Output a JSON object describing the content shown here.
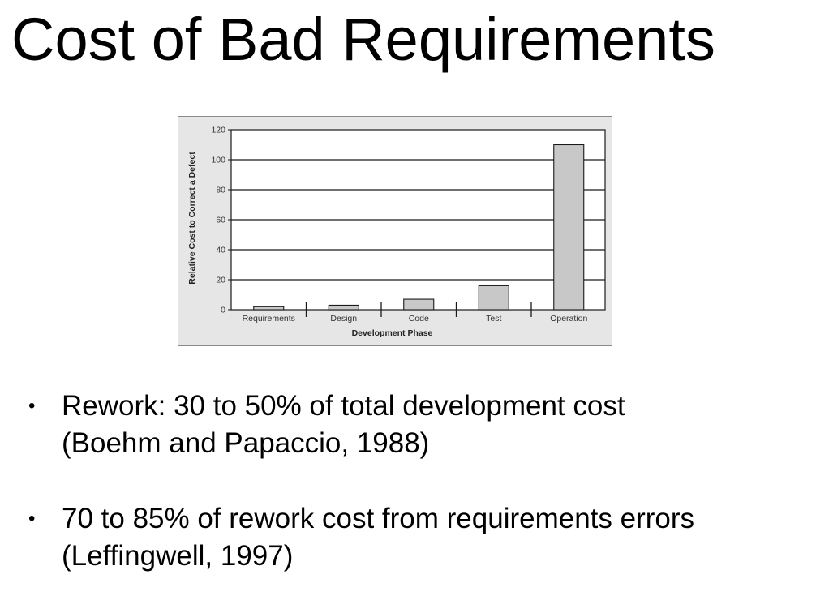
{
  "slide": {
    "title": "Cost of Bad Requirements"
  },
  "bullets": [
    {
      "symbol": "•",
      "lines": [
        "Rework: 30 to 50% of total development cost",
        "(Boehm and Papaccio, 1988)"
      ]
    },
    {
      "symbol": "•",
      "lines": [
        "70 to 85% of rework cost from requirements errors",
        "(Leffingwell, 1997)"
      ]
    }
  ],
  "chart_data": {
    "type": "bar",
    "title": "",
    "xlabel": "Development Phase",
    "ylabel": "Relative Cost to Correct a Defect",
    "categories": [
      "Requirements",
      "Design",
      "Code",
      "Test",
      "Operation"
    ],
    "values": [
      2,
      3,
      7,
      16,
      110
    ],
    "ylim": [
      0,
      120
    ],
    "yticks": [
      0,
      20,
      40,
      60,
      80,
      100,
      120
    ],
    "grid": true,
    "bar_color": "#c8c8c8",
    "background_color": "#e6e6e6"
  }
}
